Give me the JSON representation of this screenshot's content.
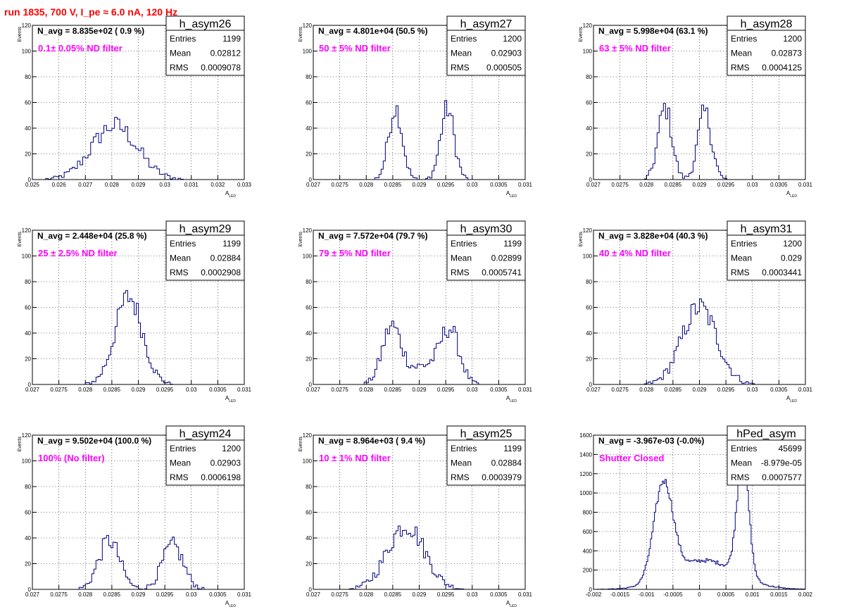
{
  "run_title": "run 1835,   700 V, I_pe ≈ 6.0 nA, 120 Hz",
  "line_color": "#00007f",
  "annotation_color": "#ff00ff",
  "title_color": "#ff0000",
  "chart_data": [
    {
      "type": "histogram",
      "name": "h_asym26",
      "navg": "N_avg = 8.835e+02 ( 0.9 %)",
      "filter": "0.1± 0.05% ND filter",
      "stats": {
        "entries": "1199",
        "mean": "0.02812",
        "rms": "0.0009078"
      },
      "ylabel": "Events",
      "xlabel": "A",
      "xlabel_sub": "LED",
      "xlim": [
        0.025,
        0.033
      ],
      "ylim": [
        0,
        120
      ],
      "xticks": [
        "0.025",
        "0.026",
        "0.027",
        "0.028",
        "0.029",
        "0.03",
        "0.031",
        "0.032",
        "0.033"
      ],
      "yticks": [
        "0",
        "20",
        "40",
        "60",
        "80",
        "100",
        "120"
      ],
      "bins": 80,
      "peaks": [
        {
          "mu": 0.0281,
          "sigma": 0.00085,
          "h": 42
        }
      ],
      "grid": true
    },
    {
      "type": "histogram",
      "name": "h_asym27",
      "navg": "N_avg = 4.801e+04 (50.5 %)",
      "filter": "50 ± 5% ND filter",
      "stats": {
        "entries": "1200",
        "mean": "0.02903",
        "rms": "0.000505"
      },
      "ylabel": "Events",
      "xlabel": "A",
      "xlabel_sub": "LED",
      "xlim": [
        0.027,
        0.031
      ],
      "ylim": [
        0,
        120
      ],
      "xticks": [
        "0.027",
        "0.0275",
        "0.028",
        "0.0285",
        "0.029",
        "0.0295",
        "0.03",
        "0.0305",
        "0.031"
      ],
      "yticks": [
        "0",
        "20",
        "40",
        "60",
        "80",
        "100",
        "120"
      ],
      "bins": 100,
      "peaks": [
        {
          "mu": 0.02855,
          "sigma": 0.00013,
          "h": 56
        },
        {
          "mu": 0.02953,
          "sigma": 0.00013,
          "h": 55
        }
      ],
      "grid": true
    },
    {
      "type": "histogram",
      "name": "h_asym28",
      "navg": "N_avg = 5.998e+04 (63.1 %)",
      "filter": "63 ± 5% ND filter",
      "stats": {
        "entries": "1200",
        "mean": "0.02873",
        "rms": "0.0004125"
      },
      "ylabel": "Events",
      "xlabel": "A",
      "xlabel_sub": "LED",
      "xlim": [
        0.027,
        0.031
      ],
      "ylim": [
        0,
        120
      ],
      "xticks": [
        "0.027",
        "0.0275",
        "0.028",
        "0.0285",
        "0.029",
        "0.0295",
        "0.03",
        "0.0305",
        "0.031"
      ],
      "yticks": [
        "0",
        "20",
        "40",
        "60",
        "80",
        "100",
        "120"
      ],
      "bins": 100,
      "peaks": [
        {
          "mu": 0.02835,
          "sigma": 0.00013,
          "h": 56
        },
        {
          "mu": 0.0291,
          "sigma": 0.00013,
          "h": 52
        }
      ],
      "grid": true
    },
    {
      "type": "histogram",
      "name": "h_asym29",
      "navg": "N_avg = 2.448e+04 (25.8 %)",
      "filter": "25 ± 2.5% ND filter",
      "stats": {
        "entries": "1199",
        "mean": "0.02884",
        "rms": "0.0002908"
      },
      "ylabel": "Events",
      "xlabel": "A",
      "xlabel_sub": "LED",
      "xlim": [
        0.027,
        0.031
      ],
      "ylim": [
        0,
        120
      ],
      "xticks": [
        "0.027",
        "0.0275",
        "0.028",
        "0.0285",
        "0.029",
        "0.0295",
        "0.03",
        "0.0305",
        "0.031"
      ],
      "yticks": [
        "0",
        "20",
        "40",
        "60",
        "80",
        "100",
        "120"
      ],
      "bins": 100,
      "peaks": [
        {
          "mu": 0.02882,
          "sigma": 0.00026,
          "h": 68
        }
      ],
      "grid": true
    },
    {
      "type": "histogram",
      "name": "h_asym30",
      "navg": "N_avg = 7.572e+04 (79.7 %)",
      "filter": "79 ± 5% ND filter",
      "stats": {
        "entries": "1199",
        "mean": "0.02899",
        "rms": "0.0005741"
      },
      "ylabel": "Events",
      "xlabel": "A",
      "xlabel_sub": "LED",
      "xlim": [
        0.027,
        0.031
      ],
      "ylim": [
        0,
        120
      ],
      "xticks": [
        "0.027",
        "0.0275",
        "0.028",
        "0.0285",
        "0.029",
        "0.0295",
        "0.03",
        "0.0305",
        "0.031"
      ],
      "yticks": [
        "0",
        "20",
        "40",
        "60",
        "80",
        "100",
        "120"
      ],
      "bins": 100,
      "peaks": [
        {
          "mu": 0.02848,
          "sigma": 0.00018,
          "h": 44
        },
        {
          "mu": 0.02958,
          "sigma": 0.00018,
          "h": 40
        },
        {
          "mu": 0.0291,
          "sigma": 0.0003,
          "h": 14
        }
      ],
      "grid": true
    },
    {
      "type": "histogram",
      "name": "h_asym31",
      "navg": "N_avg = 3.828e+04 (40.3 %)",
      "filter": "40 ± 4% ND filter",
      "stats": {
        "entries": "1200",
        "mean": "0.029",
        "rms": "0.0003441"
      },
      "ylabel": "Events",
      "xlabel": "A",
      "xlabel_sub": "LED",
      "xlim": [
        0.027,
        0.031
      ],
      "ylim": [
        0,
        120
      ],
      "xticks": [
        "0.027",
        "0.0275",
        "0.028",
        "0.0285",
        "0.029",
        "0.0295",
        "0.03",
        "0.0305",
        "0.031"
      ],
      "yticks": [
        "0",
        "20",
        "40",
        "60",
        "80",
        "100",
        "120"
      ],
      "bins": 100,
      "peaks": [
        {
          "mu": 0.029,
          "sigma": 0.00033,
          "h": 60
        }
      ],
      "grid": true
    },
    {
      "type": "histogram",
      "name": "h_asym24",
      "navg": "N_avg = 9.502e+04 (100.0 %)",
      "filter": "100% (No filter)",
      "stats": {
        "entries": "1200",
        "mean": "0.02903",
        "rms": "0.0006198"
      },
      "ylabel": "Events",
      "xlabel": "A",
      "xlabel_sub": "LED",
      "xlim": [
        0.027,
        0.031
      ],
      "ylim": [
        0,
        120
      ],
      "xticks": [
        "0.027",
        "0.0275",
        "0.028",
        "0.0285",
        "0.029",
        "0.0295",
        "0.03",
        "0.0305",
        "0.031"
      ],
      "yticks": [
        "0",
        "20",
        "40",
        "60",
        "80",
        "100",
        "120"
      ],
      "bins": 100,
      "peaks": [
        {
          "mu": 0.02845,
          "sigma": 0.0002,
          "h": 38
        },
        {
          "mu": 0.02965,
          "sigma": 0.0002,
          "h": 34
        }
      ],
      "grid": true
    },
    {
      "type": "histogram",
      "name": "h_asym25",
      "navg": "N_avg = 8.964e+03 ( 9.4 %)",
      "filter": "10 ± 1% ND filter",
      "stats": {
        "entries": "1199",
        "mean": "0.02884",
        "rms": "0.0003979"
      },
      "ylabel": "Events",
      "xlabel": "A",
      "xlabel_sub": "LED",
      "xlim": [
        0.027,
        0.031
      ],
      "ylim": [
        0,
        120
      ],
      "xticks": [
        "0.027",
        "0.0275",
        "0.028",
        "0.0285",
        "0.029",
        "0.0295",
        "0.03",
        "0.0305",
        "0.031"
      ],
      "yticks": [
        "0",
        "20",
        "40",
        "60",
        "80",
        "100",
        "120"
      ],
      "bins": 100,
      "peaks": [
        {
          "mu": 0.02875,
          "sigma": 0.00035,
          "h": 50
        }
      ],
      "grid": true
    },
    {
      "type": "histogram",
      "name": "hPed_asym",
      "navg": "N_avg = -3.967e-03 (-0.0%)",
      "filter": "Shutter Closed",
      "stats": {
        "entries": "45699",
        "mean": "-8.979e-05",
        "rms": "0.0007577"
      },
      "ylabel": "",
      "xlabel": "",
      "xlabel_sub": "",
      "xlim": [
        -0.002,
        0.002
      ],
      "ylim": [
        0,
        1600
      ],
      "xticks": [
        "-0.002",
        "-0.0015",
        "-0.001",
        "-0.0005",
        "0",
        "0.0005",
        "0.001",
        "0.0015",
        "0.002"
      ],
      "yticks": [
        "0",
        "200",
        "400",
        "600",
        "800",
        "1000",
        "1200",
        "1400",
        "1600"
      ],
      "bins": 160,
      "peaks": [
        {
          "mu": -0.00068,
          "sigma": 0.00018,
          "h": 1000
        },
        {
          "mu": 0.00082,
          "sigma": 0.00011,
          "h": 1250
        },
        {
          "mu": 0.0001,
          "sigma": 0.0006,
          "h": 300
        }
      ],
      "grid": true
    }
  ]
}
